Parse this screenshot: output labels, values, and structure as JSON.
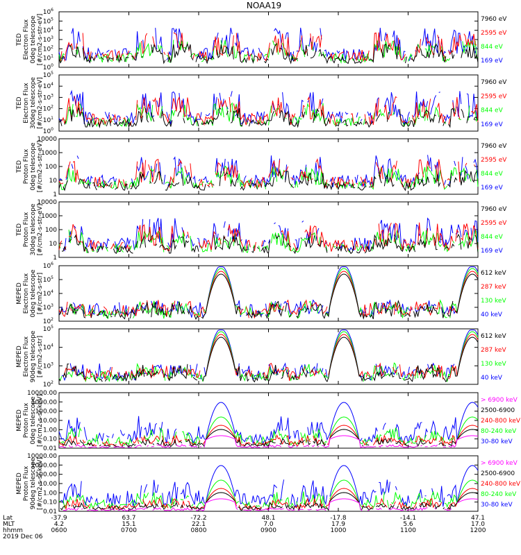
{
  "title": "NOAA19",
  "colors": {
    "black": "#000000",
    "red": "#ff0000",
    "green": "#00ff00",
    "blue": "#0000ff",
    "magenta": "#ff00ff"
  },
  "chart_data": {
    "type": "line",
    "x_axis": {
      "row_labels": [
        "Lat",
        "MLT",
        "hhmm"
      ],
      "ticks": [
        {
          "lat": "-37.9",
          "mlt": "4.2",
          "hhmm": "0600"
        },
        {
          "lat": "63.7",
          "mlt": "15.1",
          "hhmm": "0700"
        },
        {
          "lat": "-72.2",
          "mlt": "22.1",
          "hhmm": "0800"
        },
        {
          "lat": "48.1",
          "mlt": "7.0",
          "hhmm": "0900"
        },
        {
          "lat": "-17.8",
          "mlt": "17.9",
          "hhmm": "1000"
        },
        {
          "lat": "-14.1",
          "mlt": "5.6",
          "hhmm": "1100"
        },
        {
          "lat": "47.1",
          "mlt": "17.0",
          "hhmm": "1200"
        }
      ],
      "date": "2019 Dec 06"
    },
    "panels": [
      {
        "id": "ted-e-0",
        "ylabel": [
          "TED",
          "Electron Flux",
          "0deg telescope",
          "[#/cm2-s-str-eV]"
        ],
        "log": true,
        "ylim_exp": [
          0,
          6
        ],
        "yticks": [
          "10^0",
          "10^1",
          "10^2",
          "10^3",
          "10^4",
          "10^5",
          "10^6"
        ],
        "series": [
          {
            "name": "7960 eV",
            "color": "#000000"
          },
          {
            "name": "2595 eV",
            "color": "#ff0000"
          },
          {
            "name": "844 eV",
            "color": "#00ff00"
          },
          {
            "name": "169 eV",
            "color": "#0000ff"
          }
        ]
      },
      {
        "id": "ted-e-30",
        "ylabel": [
          "TED",
          "Electron Flux",
          "30deg telescope",
          "[#/cm2-s-str-eV]"
        ],
        "log": true,
        "ylim_exp": [
          0,
          5
        ],
        "yticks": [
          "10^0",
          "10^1",
          "10^2",
          "10^3",
          "10^4",
          "10^5"
        ],
        "series": [
          {
            "name": "7960 eV",
            "color": "#000000"
          },
          {
            "name": "2595 eV",
            "color": "#ff0000"
          },
          {
            "name": "844 eV",
            "color": "#00ff00"
          },
          {
            "name": "169 eV",
            "color": "#0000ff"
          }
        ]
      },
      {
        "id": "ted-p-0",
        "ylabel": [
          "TED",
          "Proton Flux",
          "0deg telescope",
          "[#/cm2-s-str-eV]"
        ],
        "log": true,
        "ylim_exp": [
          0,
          4
        ],
        "yticks": [
          "1",
          "10",
          "100",
          "1000",
          "10000"
        ],
        "series": [
          {
            "name": "7960 eV",
            "color": "#000000"
          },
          {
            "name": "2595 eV",
            "color": "#ff0000"
          },
          {
            "name": "844 eV",
            "color": "#00ff00"
          },
          {
            "name": "169 eV",
            "color": "#0000ff"
          }
        ]
      },
      {
        "id": "ted-p-30",
        "ylabel": [
          "TED",
          "Proton Flux",
          "30deg telescope",
          "[#/cm2-s-str-eV]"
        ],
        "log": true,
        "ylim_exp": [
          0,
          4
        ],
        "yticks": [
          "1",
          "10",
          "100",
          "1000",
          "10000"
        ],
        "series": [
          {
            "name": "7960 eV",
            "color": "#000000"
          },
          {
            "name": "2595 eV",
            "color": "#ff0000"
          },
          {
            "name": "844 eV",
            "color": "#00ff00"
          },
          {
            "name": "169 eV",
            "color": "#0000ff"
          }
        ]
      },
      {
        "id": "meped-e-0",
        "ylabel": [
          "MEPED",
          "Electron Flux",
          "0deg telescope",
          "[#/cm2-s-str]"
        ],
        "log": true,
        "ylim_exp": [
          2,
          6
        ],
        "yticks": [
          "10^2",
          "10^3",
          "10^4",
          "10^5",
          "10^6"
        ],
        "series": [
          {
            "name": "612 keV",
            "color": "#000000"
          },
          {
            "name": "287 keV",
            "color": "#ff0000"
          },
          {
            "name": "130 keV",
            "color": "#00ff00"
          },
          {
            "name": "40 keV",
            "color": "#0000ff"
          }
        ]
      },
      {
        "id": "meped-e-90",
        "ylabel": [
          "MEPED",
          "Electron Flux",
          "90deg telescope",
          "[#/cm2-s-str]"
        ],
        "log": true,
        "ylim_exp": [
          2,
          5
        ],
        "yticks": [
          "10^2",
          "10^3",
          "10^4",
          "10^5"
        ],
        "series": [
          {
            "name": "612 keV",
            "color": "#000000"
          },
          {
            "name": "287 keV",
            "color": "#ff0000"
          },
          {
            "name": "130 keV",
            "color": "#00ff00"
          },
          {
            "name": "40 keV",
            "color": "#0000ff"
          }
        ]
      },
      {
        "id": "meped-p-0",
        "ylabel": [
          "MEPED",
          "Proton Flux",
          "0deg telescope",
          "[#/cm2-s-sr-keV]"
        ],
        "log": true,
        "ylim_exp": [
          -2,
          4
        ],
        "yticks": [
          "0.01",
          "0.10",
          "1.00",
          "10.00",
          "100.00",
          "1000.00",
          "10000.00"
        ],
        "series": [
          {
            "name": "> 6900 keV",
            "color": "#ff00ff"
          },
          {
            "name": "2500-6900",
            "color": "#000000"
          },
          {
            "name": "240-800 keV",
            "color": "#ff0000"
          },
          {
            "name": "80-240 keV",
            "color": "#00ff00"
          },
          {
            "name": "30-80 keV",
            "color": "#0000ff"
          }
        ]
      },
      {
        "id": "meped-p-90",
        "ylabel": [
          "MEPED",
          "Proton Flux",
          "90deg telescope",
          "[#/cm2-s-sr-keV]"
        ],
        "log": true,
        "ylim_exp": [
          -2,
          4
        ],
        "yticks": [
          "0.01",
          "0.10",
          "1.00",
          "10.00",
          "100.00",
          "1000.00",
          "10000.00"
        ],
        "series": [
          {
            "name": "> 6900 keV",
            "color": "#ff00ff"
          },
          {
            "name": "2500-6900",
            "color": "#000000"
          },
          {
            "name": "240-800 keV",
            "color": "#ff0000"
          },
          {
            "name": "80-240 keV",
            "color": "#00ff00"
          },
          {
            "name": "30-80 keV",
            "color": "#0000ff"
          }
        ]
      }
    ]
  }
}
